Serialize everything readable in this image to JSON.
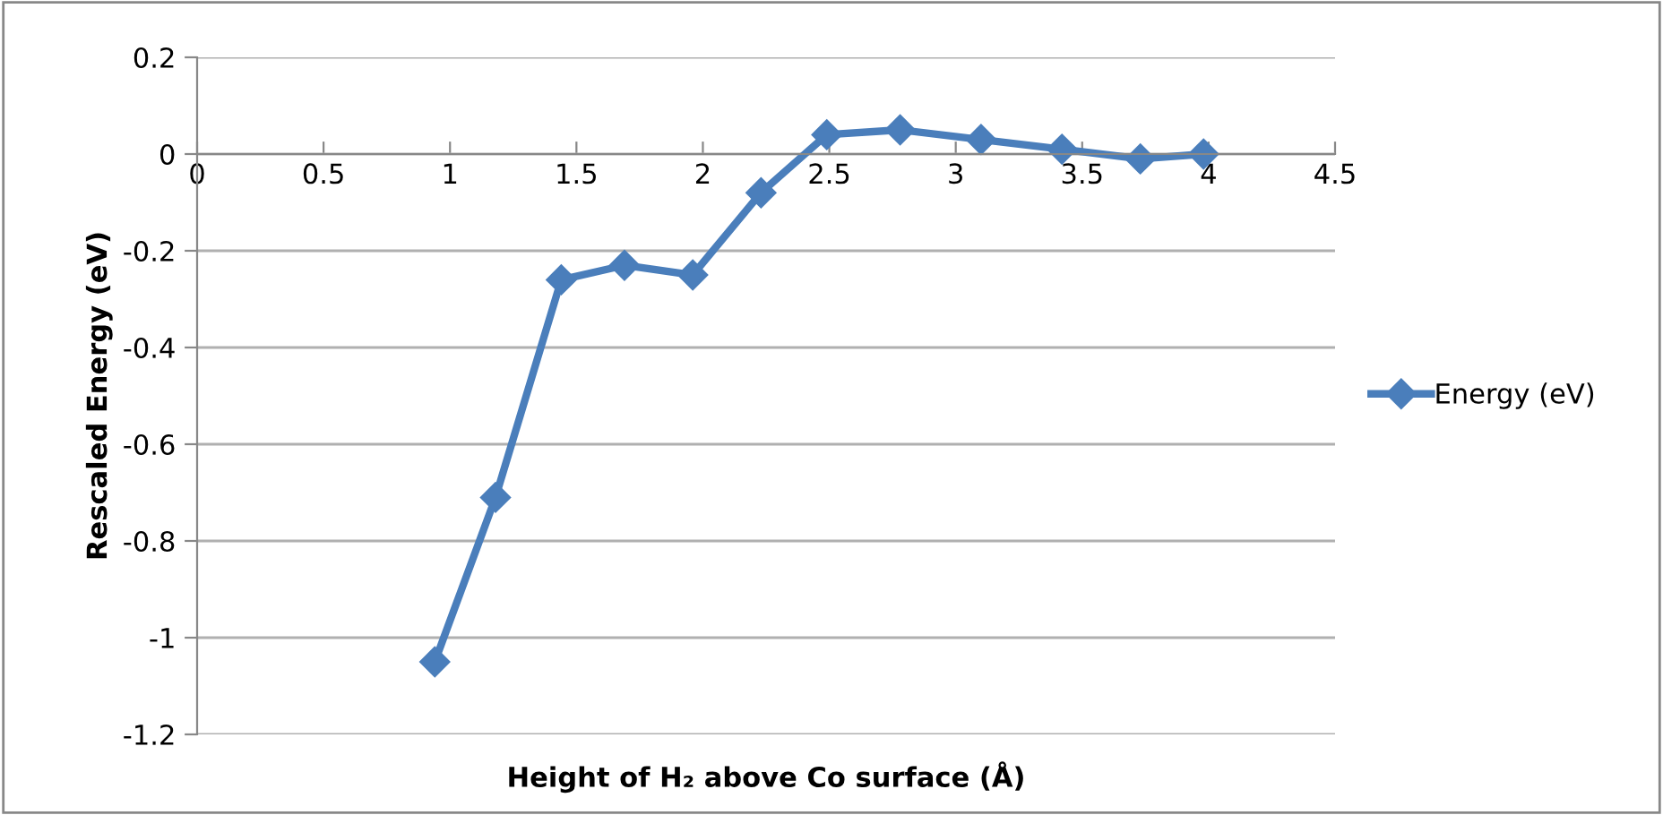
{
  "chart_data": {
    "type": "line",
    "xlabel": "Height of H₂ above Co surface (Å)",
    "ylabel": "Rescaled Energy (eV)",
    "x": [
      0.94,
      1.18,
      1.44,
      1.69,
      1.96,
      2.23,
      2.49,
      2.78,
      3.1,
      3.42,
      3.73,
      3.98
    ],
    "series": [
      {
        "name": "Energy (eV)",
        "color": "#4a7ebb",
        "values": [
          -1.05,
          -0.71,
          -0.26,
          -0.23,
          -0.25,
          -0.08,
          0.04,
          0.05,
          0.03,
          0.01,
          -0.01,
          0.0
        ]
      }
    ],
    "xlim": [
      0,
      4.5
    ],
    "xticks": [
      0,
      0.5,
      1,
      1.5,
      2,
      2.5,
      3,
      3.5,
      4,
      4.5
    ],
    "ylim": [
      -1.2,
      0.2
    ],
    "yticks": [
      -1.2,
      -1,
      -0.8,
      -0.6,
      -0.4,
      -0.2,
      0,
      0.2
    ],
    "grid": "y",
    "legend": "right",
    "marker": "diamond",
    "line_style": "solid"
  }
}
